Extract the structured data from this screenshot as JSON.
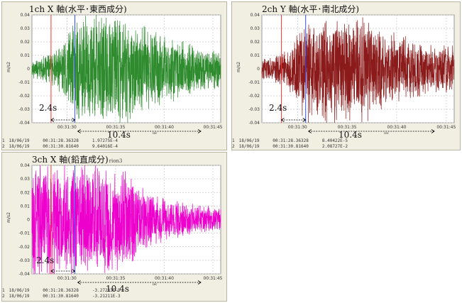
{
  "panels": [
    {
      "id": "p1",
      "title": "1ch X 軸(水平･東西成分)",
      "title_suffix": "",
      "ylabel": "m/s2",
      "yticks": [
        "0.04",
        "0.03",
        "0.02",
        "0.01",
        "0",
        "-0.01",
        "-0.02",
        "-0.03",
        "-0.04"
      ],
      "xticks": [
        "00:31:30",
        "00:31:35",
        "00:31:40",
        "00:31:45"
      ],
      "xunit": "sec",
      "color": "#2e8b2e",
      "annotation_short": "2.4s",
      "annotation_long": "10.4s",
      "cursors": [
        {
          "index": "1",
          "date": "18/06/19",
          "time": "00:31:28.36328",
          "value": "1.97275E-4"
        },
        {
          "index": "2",
          "date": "18/06/19",
          "time": "00:31:30.81640",
          "value": "9.64016E-4"
        }
      ]
    },
    {
      "id": "p2",
      "title": "2ch Y 軸(水平･南北成分)",
      "title_suffix": "",
      "ylabel": "m/s2",
      "yticks": [
        "0.04",
        "0.03",
        "0.02",
        "0.01",
        "0",
        "-0.01",
        "-0.02",
        "-0.03",
        "-0.04"
      ],
      "xticks": [
        "00:31:30",
        "00:31:35",
        "00:31:40",
        "00:31:45"
      ],
      "xunit": "sec",
      "color": "#8b1a1a",
      "annotation_short": "2.4s",
      "annotation_long": "10.4s",
      "cursors": [
        {
          "index": "1",
          "date": "18/06/19",
          "time": "00:31:28.36328",
          "value": "8.40422E-5"
        },
        {
          "index": "2",
          "date": "18/06/19",
          "time": "00:31:30.81640",
          "value": "2.08727E-2"
        }
      ]
    },
    {
      "id": "p3",
      "title": "3ch X 軸(鉛直成分)",
      "title_suffix": "rion3",
      "ylabel": "m/s2",
      "yticks": [
        "0.04",
        "0.03",
        "0.02",
        "0.01",
        "0",
        "-0.01",
        "-0.02",
        "-0.03",
        "-0.04"
      ],
      "xticks": [
        "00:31:30",
        "00:31:35",
        "00:31:40",
        "00:31:45"
      ],
      "xunit": "sec",
      "color": "#ee00cc",
      "annotation_short": "2.4s",
      "annotation_long": "10.4s",
      "cursors": [
        {
          "index": "1",
          "date": "18/06/19",
          "time": "00:31:28.36328",
          "value": "-3.27233E-5"
        },
        {
          "index": "2",
          "date": "18/06/19",
          "time": "00:31:30.81640",
          "value": "-3.21211E-3"
        }
      ]
    }
  ],
  "chart_data": [
    {
      "type": "line",
      "title": "1ch X 軸(水平･東西成分)",
      "ylabel": "m/s2",
      "ylim": [
        -0.04,
        0.04
      ],
      "x_ticks": [
        "00:31:30",
        "00:31:35",
        "00:31:40",
        "00:31:45"
      ],
      "x_start": "00:31:26.4",
      "x_end": "00:31:45.8",
      "cursor_times": [
        "00:31:28.36328",
        "00:31:30.81640"
      ],
      "envelope": {
        "x": [
          "00:31:27",
          "00:31:29",
          "00:31:30",
          "00:31:31",
          "00:31:33",
          "00:31:36",
          "00:31:37",
          "00:31:39",
          "00:31:41",
          "00:31:43",
          "00:31:45"
        ],
        "amplitude": [
          0.008,
          0.015,
          0.03,
          0.045,
          0.045,
          0.045,
          0.04,
          0.03,
          0.025,
          0.02,
          0.015
        ]
      }
    },
    {
      "type": "line",
      "title": "2ch Y 軸(水平･南北成分)",
      "ylabel": "m/s2",
      "ylim": [
        -0.04,
        0.04
      ],
      "x_ticks": [
        "00:31:30",
        "00:31:35",
        "00:31:40",
        "00:31:45"
      ],
      "x_start": "00:31:26.4",
      "x_end": "00:31:45.8",
      "cursor_times": [
        "00:31:28.36328",
        "00:31:30.81640"
      ],
      "envelope": {
        "x": [
          "00:31:27",
          "00:31:29",
          "00:31:30",
          "00:31:31",
          "00:31:33",
          "00:31:36",
          "00:31:37",
          "00:31:39",
          "00:31:41",
          "00:31:43",
          "00:31:45"
        ],
        "amplitude": [
          0.008,
          0.015,
          0.03,
          0.045,
          0.045,
          0.045,
          0.045,
          0.03,
          0.025,
          0.02,
          0.02
        ]
      }
    },
    {
      "type": "line",
      "title": "3ch X 軸(鉛直成分)",
      "ylabel": "m/s2",
      "ylim": [
        -0.04,
        0.04
      ],
      "x_ticks": [
        "00:31:30",
        "00:31:35",
        "00:31:40",
        "00:31:45"
      ],
      "x_start": "00:31:26.4",
      "x_end": "00:31:45.8",
      "cursor_times": [
        "00:31:28.36328",
        "00:31:30.81640"
      ],
      "envelope": {
        "x": [
          "00:31:27",
          "00:31:29",
          "00:31:30",
          "00:31:31",
          "00:31:33",
          "00:31:36",
          "00:31:37",
          "00:31:39",
          "00:31:41",
          "00:31:43",
          "00:31:45"
        ],
        "amplitude": [
          0.045,
          0.045,
          0.045,
          0.045,
          0.045,
          0.04,
          0.03,
          0.02,
          0.015,
          0.012,
          0.01
        ]
      }
    }
  ]
}
